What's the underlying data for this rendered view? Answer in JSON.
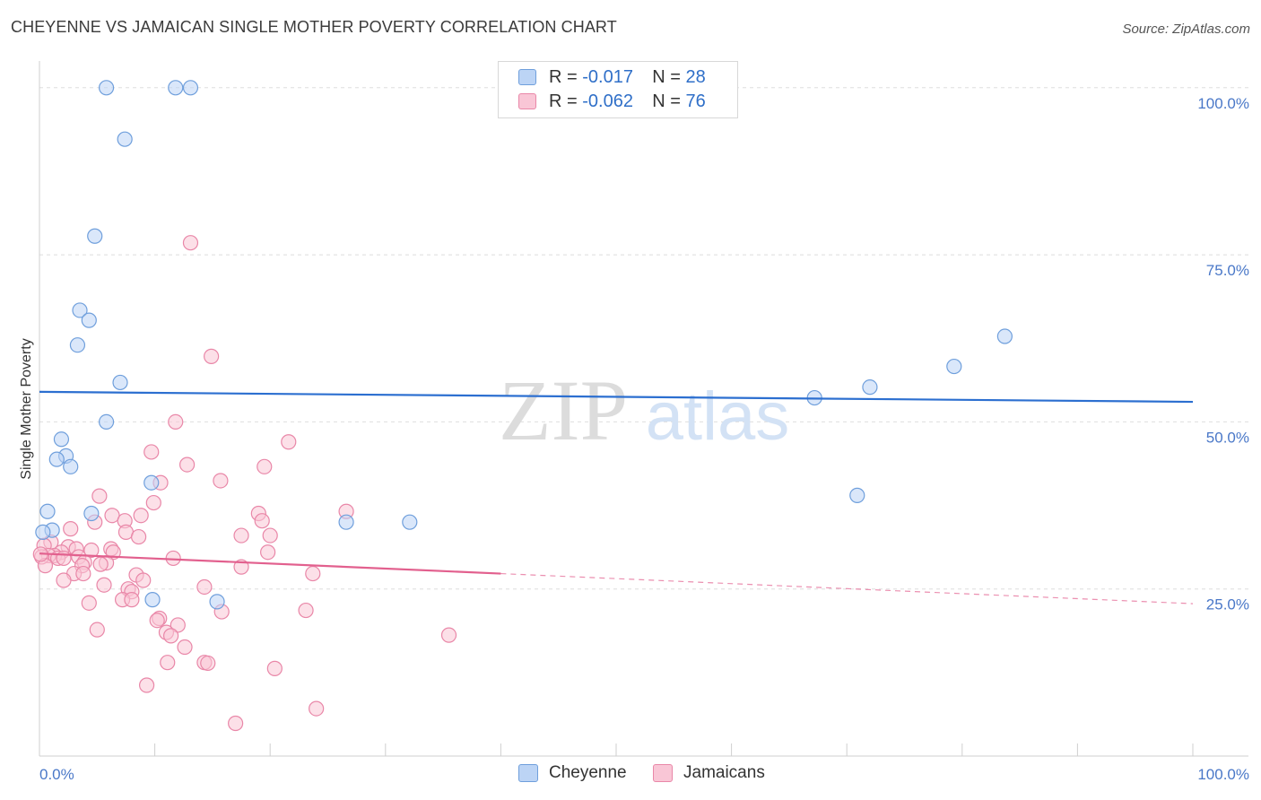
{
  "header": {
    "title": "CHEYENNE VS JAMAICAN SINGLE MOTHER POVERTY CORRELATION CHART",
    "source": "Source: ZipAtlas.com"
  },
  "stats": {
    "rows": [
      {
        "r_label": "R =",
        "r_value": "-0.017",
        "n_label": "N =",
        "n_value": "28"
      },
      {
        "r_label": "R =",
        "r_value": "-0.062",
        "n_label": "N =",
        "n_value": "76"
      }
    ]
  },
  "legend": {
    "items": [
      {
        "label": "Cheyenne"
      },
      {
        "label": "Jamaicans"
      }
    ]
  },
  "watermark": {
    "zip": "ZIP",
    "atlas": "atlas"
  },
  "colors": {
    "cheyenne_fill": "#bcd4f5",
    "cheyenne_stroke": "#6f9fdc",
    "cheyenne_line": "#2c6fd0",
    "jamaicans_fill": "#f9c6d6",
    "jamaicans_stroke": "#e987a8",
    "jamaicans_line": "#e2608e",
    "tick_label": "#4a78c8"
  },
  "chart_data": {
    "type": "scatter",
    "title": "CHEYENNE VS JAMAICAN SINGLE MOTHER POVERTY CORRELATION CHART",
    "xlabel": "",
    "ylabel": "Single Mother Poverty",
    "xlim": [
      0,
      100
    ],
    "ylim": [
      0,
      104
    ],
    "x_tick_labels": [
      {
        "value": 0,
        "label": "0.0%"
      },
      {
        "value": 100,
        "label": "100.0%"
      }
    ],
    "y_tick_labels": [
      {
        "value": 25,
        "label": "25.0%"
      },
      {
        "value": 50,
        "label": "50.0%"
      },
      {
        "value": 75,
        "label": "75.0%"
      },
      {
        "value": 100,
        "label": "100.0%"
      }
    ],
    "series": [
      {
        "name": "Cheyenne",
        "r": -0.017,
        "n": 28,
        "trend": {
          "x": [
            0,
            100
          ],
          "y": [
            54.5,
            53.0
          ],
          "dashed_from": null
        },
        "points": [
          {
            "x": 5.8,
            "y": 100
          },
          {
            "x": 11.8,
            "y": 100
          },
          {
            "x": 13.1,
            "y": 100
          },
          {
            "x": 7.4,
            "y": 92.3
          },
          {
            "x": 4.8,
            "y": 77.8
          },
          {
            "x": 3.5,
            "y": 66.7
          },
          {
            "x": 4.3,
            "y": 65.2
          },
          {
            "x": 3.3,
            "y": 61.5
          },
          {
            "x": 7.0,
            "y": 55.9
          },
          {
            "x": 5.8,
            "y": 50.0
          },
          {
            "x": 1.9,
            "y": 47.4
          },
          {
            "x": 2.3,
            "y": 44.9
          },
          {
            "x": 1.5,
            "y": 44.4
          },
          {
            "x": 2.7,
            "y": 43.3
          },
          {
            "x": 9.7,
            "y": 40.9
          },
          {
            "x": 0.7,
            "y": 36.6
          },
          {
            "x": 4.5,
            "y": 36.3
          },
          {
            "x": 1.1,
            "y": 33.8
          },
          {
            "x": 0.3,
            "y": 33.5
          },
          {
            "x": 26.6,
            "y": 35.0
          },
          {
            "x": 32.1,
            "y": 35.0
          },
          {
            "x": 9.8,
            "y": 23.4
          },
          {
            "x": 15.4,
            "y": 23.1
          },
          {
            "x": 67.2,
            "y": 53.6
          },
          {
            "x": 72.0,
            "y": 55.2
          },
          {
            "x": 79.3,
            "y": 58.3
          },
          {
            "x": 83.7,
            "y": 62.8
          },
          {
            "x": 70.9,
            "y": 39.0
          }
        ]
      },
      {
        "name": "Jamaicans",
        "r": -0.062,
        "n": 76,
        "trend": {
          "x": [
            0,
            100
          ],
          "y": [
            30.3,
            22.8
          ],
          "dashed_from": 40
        },
        "points": [
          {
            "x": 13.1,
            "y": 76.8
          },
          {
            "x": 14.9,
            "y": 59.8
          },
          {
            "x": 11.8,
            "y": 50.0
          },
          {
            "x": 21.6,
            "y": 47.0
          },
          {
            "x": 9.7,
            "y": 45.5
          },
          {
            "x": 12.8,
            "y": 43.6
          },
          {
            "x": 19.5,
            "y": 43.3
          },
          {
            "x": 15.7,
            "y": 41.2
          },
          {
            "x": 10.5,
            "y": 40.9
          },
          {
            "x": 5.2,
            "y": 38.9
          },
          {
            "x": 9.9,
            "y": 37.9
          },
          {
            "x": 26.6,
            "y": 36.6
          },
          {
            "x": 19.0,
            "y": 36.3
          },
          {
            "x": 6.3,
            "y": 36.0
          },
          {
            "x": 8.8,
            "y": 36.0
          },
          {
            "x": 4.8,
            "y": 35.0
          },
          {
            "x": 7.4,
            "y": 35.2
          },
          {
            "x": 19.3,
            "y": 35.2
          },
          {
            "x": 2.7,
            "y": 34.0
          },
          {
            "x": 7.5,
            "y": 33.5
          },
          {
            "x": 17.5,
            "y": 33.0
          },
          {
            "x": 20.0,
            "y": 33.0
          },
          {
            "x": 8.6,
            "y": 32.8
          },
          {
            "x": 1.0,
            "y": 32.0
          },
          {
            "x": 0.4,
            "y": 31.5
          },
          {
            "x": 2.5,
            "y": 31.3
          },
          {
            "x": 3.2,
            "y": 31.0
          },
          {
            "x": 4.5,
            "y": 30.8
          },
          {
            "x": 6.2,
            "y": 31.0
          },
          {
            "x": 6.4,
            "y": 30.5
          },
          {
            "x": 1.9,
            "y": 30.5
          },
          {
            "x": 1.3,
            "y": 30.0
          },
          {
            "x": 0.8,
            "y": 30.0
          },
          {
            "x": 0.2,
            "y": 29.8
          },
          {
            "x": 3.4,
            "y": 29.8
          },
          {
            "x": 1.6,
            "y": 29.6
          },
          {
            "x": 2.1,
            "y": 29.6
          },
          {
            "x": 19.8,
            "y": 30.5
          },
          {
            "x": 11.6,
            "y": 29.6
          },
          {
            "x": 3.9,
            "y": 29.0
          },
          {
            "x": 5.8,
            "y": 28.9
          },
          {
            "x": 5.3,
            "y": 28.7
          },
          {
            "x": 3.7,
            "y": 28.5
          },
          {
            "x": 0.5,
            "y": 28.5
          },
          {
            "x": 17.5,
            "y": 28.3
          },
          {
            "x": 3.0,
            "y": 27.3
          },
          {
            "x": 3.8,
            "y": 27.3
          },
          {
            "x": 8.4,
            "y": 27.1
          },
          {
            "x": 23.7,
            "y": 27.3
          },
          {
            "x": 2.1,
            "y": 26.3
          },
          {
            "x": 9.0,
            "y": 26.3
          },
          {
            "x": 5.6,
            "y": 25.6
          },
          {
            "x": 14.3,
            "y": 25.3
          },
          {
            "x": 7.7,
            "y": 25.0
          },
          {
            "x": 8.0,
            "y": 24.6
          },
          {
            "x": 7.2,
            "y": 23.4
          },
          {
            "x": 8.0,
            "y": 23.4
          },
          {
            "x": 4.3,
            "y": 22.9
          },
          {
            "x": 15.8,
            "y": 21.6
          },
          {
            "x": 23.1,
            "y": 21.8
          },
          {
            "x": 10.4,
            "y": 20.6
          },
          {
            "x": 10.2,
            "y": 20.3
          },
          {
            "x": 12.0,
            "y": 19.6
          },
          {
            "x": 5.0,
            "y": 18.9
          },
          {
            "x": 11.0,
            "y": 18.5
          },
          {
            "x": 11.4,
            "y": 18.0
          },
          {
            "x": 35.5,
            "y": 18.1
          },
          {
            "x": 12.6,
            "y": 16.3
          },
          {
            "x": 11.1,
            "y": 14.0
          },
          {
            "x": 14.3,
            "y": 14.0
          },
          {
            "x": 14.6,
            "y": 13.9
          },
          {
            "x": 20.4,
            "y": 13.1
          },
          {
            "x": 9.3,
            "y": 10.6
          },
          {
            "x": 24.0,
            "y": 7.1
          },
          {
            "x": 17.0,
            "y": 4.9
          },
          {
            "x": 0.1,
            "y": 30.2
          }
        ]
      }
    ]
  }
}
